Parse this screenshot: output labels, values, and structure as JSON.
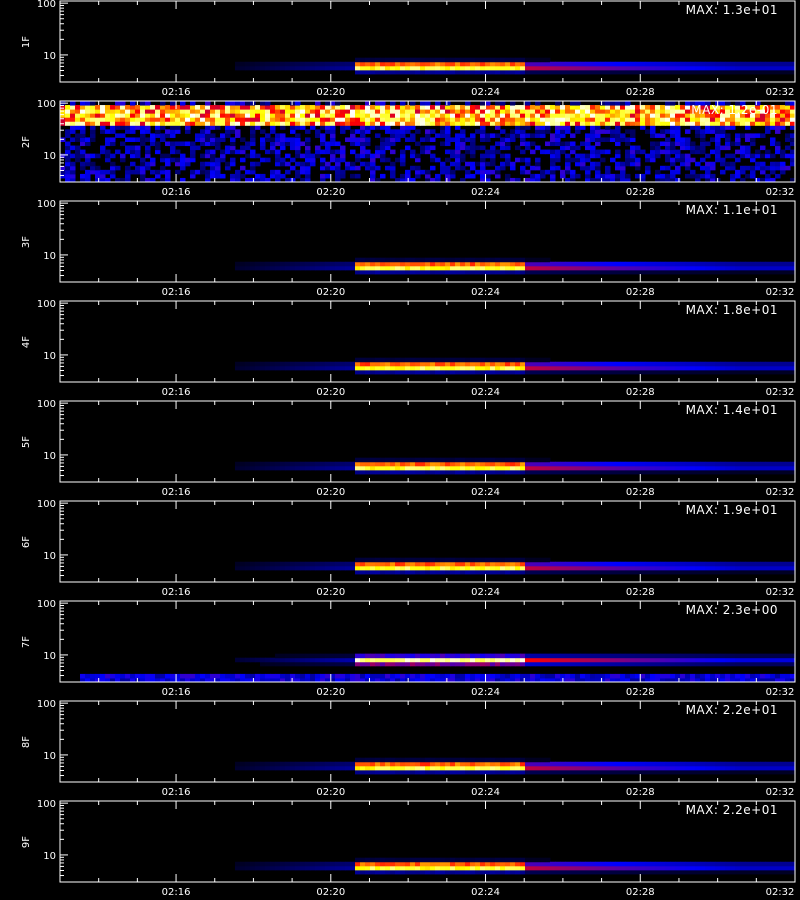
{
  "chart_data": {
    "type": "heatmap",
    "x_ticks": [
      "02:16",
      "02:20",
      "02:24",
      "02:28",
      "02:32"
    ],
    "x_range": [
      "02:13",
      "02:32"
    ],
    "y_scale": "log",
    "y_ticks": [
      "10",
      "100"
    ],
    "colormap": [
      "#000000",
      "#0000ff",
      "#ff0000",
      "#ffff00",
      "#ffffff"
    ],
    "panels": [
      {
        "label": "1F",
        "max": "MAX: 1.3e+01",
        "kind": "burst",
        "burst_start": "02:20:30",
        "burst_end": "02:25:00",
        "energy_peak": 6
      },
      {
        "label": "2F",
        "max": "MAX: 1.2e-01",
        "kind": "noise",
        "band_low": 35,
        "band_high": 90
      },
      {
        "label": "3F",
        "max": "MAX: 1.1e+01",
        "kind": "burst",
        "burst_start": "02:20:30",
        "burst_end": "02:25:00",
        "energy_peak": 6
      },
      {
        "label": "4F",
        "max": "MAX: 1.8e+01",
        "kind": "burst",
        "burst_start": "02:20:30",
        "burst_end": "02:25:00",
        "energy_peak": 6
      },
      {
        "label": "5F",
        "max": "MAX: 1.4e+01",
        "kind": "burst",
        "burst_start": "02:20:30",
        "burst_end": "02:25:00",
        "energy_peak": 6
      },
      {
        "label": "6F",
        "max": "MAX: 1.9e+01",
        "kind": "burst",
        "burst_start": "02:20:30",
        "burst_end": "02:25:00",
        "energy_peak": 6
      },
      {
        "label": "7F",
        "max": "MAX: 2.3e+00",
        "kind": "burst",
        "burst_start": "02:20:30",
        "burst_end": "02:25:00",
        "energy_peak": 8
      },
      {
        "label": "8F",
        "max": "MAX: 2.2e+01",
        "kind": "burst",
        "burst_start": "02:20:30",
        "burst_end": "02:25:00",
        "energy_peak": 6
      },
      {
        "label": "9F",
        "max": "MAX: 2.2e+01",
        "kind": "burst",
        "burst_start": "02:20:30",
        "burst_end": "02:25:00",
        "energy_peak": 6
      }
    ]
  }
}
